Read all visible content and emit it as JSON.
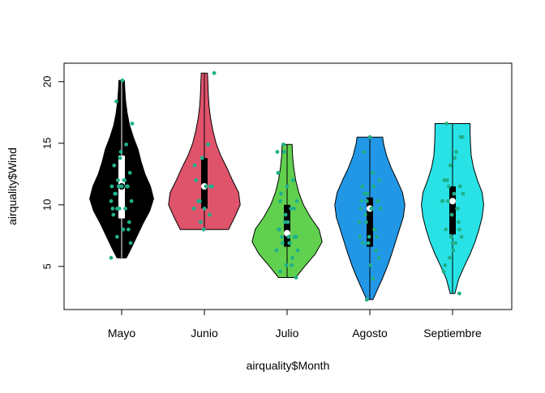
{
  "chart_data": {
    "type": "violin",
    "title": "",
    "xlabel": "airquality$Month",
    "ylabel": "airquality$Wind",
    "categories": [
      "Mayo",
      "Junio",
      "Julio",
      "Agosto",
      "Septiembre"
    ],
    "ylim": [
      1.5,
      21.5
    ],
    "yticks": [
      5,
      10,
      15,
      20
    ],
    "grid": false,
    "legend": "none",
    "series": [
      {
        "category": "Mayo",
        "color": "#000000",
        "min": 5.7,
        "max": 20.1,
        "q1": 8.9,
        "median": 11.5,
        "q3": 14.0,
        "density": [
          [
            5.7,
            0.12
          ],
          [
            6.5,
            0.25
          ],
          [
            7.5,
            0.4
          ],
          [
            8.5,
            0.55
          ],
          [
            9.5,
            0.72
          ],
          [
            10.5,
            0.82
          ],
          [
            11.5,
            0.74
          ],
          [
            12.5,
            0.6
          ],
          [
            13.5,
            0.5
          ],
          [
            14.5,
            0.42
          ],
          [
            15.5,
            0.3
          ],
          [
            16.5,
            0.2
          ],
          [
            17.5,
            0.14
          ],
          [
            18.5,
            0.1
          ],
          [
            19.5,
            0.08
          ],
          [
            20.1,
            0.07
          ]
        ],
        "points": [
          5.7,
          7.4,
          8.0,
          8.6,
          9.2,
          9.7,
          9.7,
          10.3,
          10.9,
          11.5,
          11.5,
          11.5,
          12.0,
          12.0,
          12.6,
          13.2,
          13.8,
          14.9,
          16.6,
          18.4,
          20.1,
          8.0,
          9.7,
          11.5,
          12.0,
          6.9,
          10.9,
          14.3,
          11.5,
          10.3,
          9.7
        ]
      },
      {
        "category": "Junio",
        "color": "#DF536B",
        "min": 8.0,
        "max": 20.7,
        "q1": 9.7,
        "median": 11.5,
        "q3": 13.8,
        "density": [
          [
            8.0,
            0.62
          ],
          [
            9.0,
            0.78
          ],
          [
            10.0,
            0.92
          ],
          [
            11.0,
            0.88
          ],
          [
            12.0,
            0.72
          ],
          [
            13.0,
            0.58
          ],
          [
            14.0,
            0.42
          ],
          [
            15.0,
            0.3
          ],
          [
            16.0,
            0.22
          ],
          [
            17.0,
            0.16
          ],
          [
            18.0,
            0.12
          ],
          [
            19.0,
            0.1
          ],
          [
            20.0,
            0.09
          ],
          [
            20.7,
            0.08
          ]
        ],
        "points": [
          8.0,
          9.2,
          9.7,
          10.3,
          11.5,
          11.5,
          12.0,
          13.8,
          14.9,
          20.7,
          10.3,
          9.7,
          11.5,
          13.2,
          8.6
        ]
      },
      {
        "category": "Julio",
        "color": "#61D04F",
        "min": 4.1,
        "max": 14.9,
        "q1": 6.6,
        "median": 7.7,
        "q3": 10.0,
        "density": [
          [
            4.1,
            0.22
          ],
          [
            5.0,
            0.45
          ],
          [
            6.0,
            0.72
          ],
          [
            7.0,
            0.9
          ],
          [
            8.0,
            0.82
          ],
          [
            9.0,
            0.6
          ],
          [
            10.0,
            0.42
          ],
          [
            11.0,
            0.3
          ],
          [
            12.0,
            0.22
          ],
          [
            13.0,
            0.17
          ],
          [
            14.0,
            0.14
          ],
          [
            14.9,
            0.13
          ]
        ],
        "points": [
          4.1,
          4.6,
          5.1,
          5.7,
          6.3,
          6.9,
          7.4,
          7.4,
          8.0,
          8.6,
          9.7,
          10.3,
          10.9,
          11.5,
          12.0,
          14.3,
          14.9,
          6.9,
          7.4,
          8.0,
          9.2,
          5.1,
          6.3,
          7.4,
          8.6,
          9.7,
          12.6,
          14.3,
          6.9,
          7.4,
          10.3
        ]
      },
      {
        "category": "Agosto",
        "color": "#2297E6",
        "min": 2.3,
        "max": 15.5,
        "q1": 6.6,
        "median": 9.7,
        "q3": 10.6,
        "density": [
          [
            2.3,
            0.08
          ],
          [
            3.0,
            0.18
          ],
          [
            4.0,
            0.32
          ],
          [
            5.0,
            0.45
          ],
          [
            6.0,
            0.56
          ],
          [
            7.0,
            0.66
          ],
          [
            8.0,
            0.76
          ],
          [
            9.0,
            0.86
          ],
          [
            10.0,
            0.9
          ],
          [
            11.0,
            0.84
          ],
          [
            12.0,
            0.7
          ],
          [
            13.0,
            0.55
          ],
          [
            14.0,
            0.43
          ],
          [
            15.0,
            0.35
          ],
          [
            15.5,
            0.33
          ]
        ],
        "points": [
          2.3,
          4.0,
          5.7,
          6.9,
          7.4,
          8.0,
          8.6,
          9.2,
          9.7,
          10.3,
          10.3,
          10.9,
          11.5,
          12.0,
          14.3,
          15.5,
          6.3,
          7.4,
          8.6,
          9.7,
          10.3,
          11.5,
          6.9,
          8.0,
          9.7,
          10.9,
          5.1,
          7.4,
          9.7,
          10.3,
          12.6
        ]
      },
      {
        "category": "Septiembre",
        "color": "#28E2E5",
        "min": 2.8,
        "max": 16.6,
        "q1": 7.6,
        "median": 10.3,
        "q3": 11.5,
        "density": [
          [
            2.8,
            0.06
          ],
          [
            4.0,
            0.16
          ],
          [
            5.0,
            0.3
          ],
          [
            6.0,
            0.45
          ],
          [
            7.0,
            0.58
          ],
          [
            8.0,
            0.68
          ],
          [
            9.0,
            0.76
          ],
          [
            10.0,
            0.8
          ],
          [
            11.0,
            0.76
          ],
          [
            12.0,
            0.64
          ],
          [
            13.0,
            0.54
          ],
          [
            14.0,
            0.48
          ],
          [
            15.0,
            0.46
          ],
          [
            16.0,
            0.45
          ],
          [
            16.6,
            0.45
          ]
        ],
        "points": [
          2.8,
          4.6,
          5.7,
          6.9,
          7.4,
          8.0,
          9.2,
          9.7,
          10.3,
          10.3,
          10.9,
          11.5,
          12.0,
          13.2,
          14.3,
          15.5,
          16.6,
          6.9,
          8.6,
          10.3,
          11.5,
          13.8,
          15.5,
          5.1,
          7.4,
          9.7,
          10.9,
          12.0,
          6.3,
          8.0
        ]
      }
    ]
  },
  "colors": {
    "points": "#1FB08A",
    "box": "#000000",
    "median": "#FFFFFF",
    "axis": "#000000"
  }
}
